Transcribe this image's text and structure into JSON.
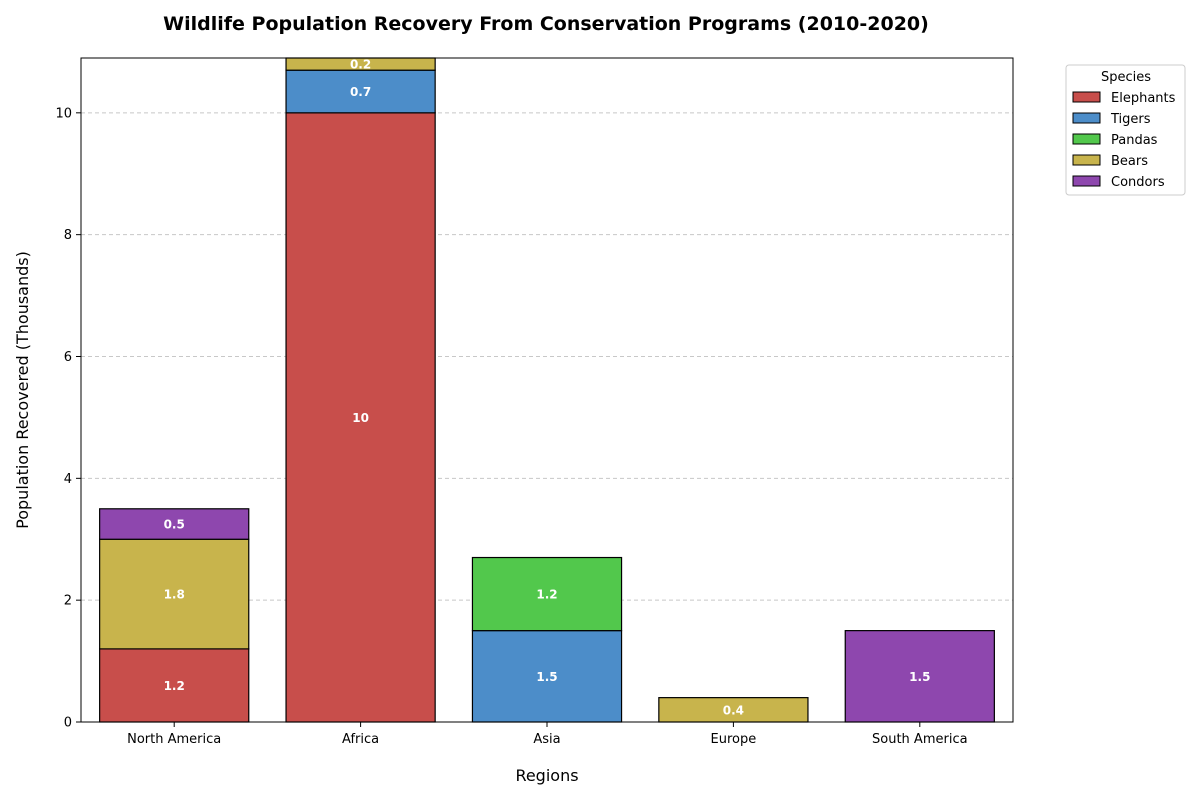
{
  "chart_data": {
    "type": "bar",
    "stacked": true,
    "title": "Wildlife Population Recovery From Conservation Programs (2010-2020)",
    "xlabel": "Regions",
    "ylabel": "Population Recovered (Thousands)",
    "categories": [
      "North America",
      "Africa",
      "Asia",
      "Europe",
      "South America"
    ],
    "ylim": [
      0,
      10.9
    ],
    "yticks": [
      0,
      2,
      4,
      6,
      8,
      10
    ],
    "grid": "y-dashed",
    "legend": {
      "title": "Species",
      "placement": "outside-top-right"
    },
    "series": [
      {
        "name": "Elephants",
        "color": "#c84e4b",
        "values": [
          1.2,
          10,
          0,
          0,
          0
        ]
      },
      {
        "name": "Tigers",
        "color": "#4c8dc9",
        "values": [
          0,
          0.7,
          1.5,
          0,
          0
        ]
      },
      {
        "name": "Pandas",
        "color": "#52c84c",
        "values": [
          0,
          0,
          1.2,
          0,
          0
        ]
      },
      {
        "name": "Bears",
        "color": "#c8b44c",
        "values": [
          1.8,
          0.2,
          0,
          0.4,
          0
        ]
      },
      {
        "name": "Condors",
        "color": "#8e47ae",
        "values": [
          0.5,
          0,
          0,
          0,
          1.5
        ]
      }
    ]
  }
}
